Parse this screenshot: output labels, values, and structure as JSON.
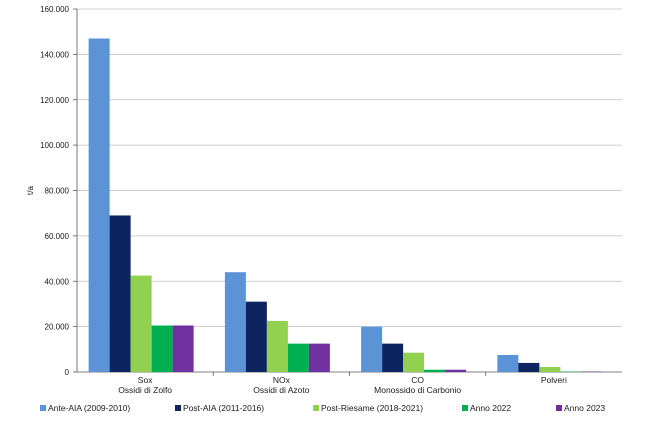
{
  "chart_data": {
    "type": "bar",
    "title": "",
    "xlabel": "",
    "ylabel": "t/a",
    "ylim": [
      0,
      160000
    ],
    "yticks": [
      {
        "value": 0,
        "label": "0"
      },
      {
        "value": 20000,
        "label": "20.000"
      },
      {
        "value": 40000,
        "label": "40.000"
      },
      {
        "value": 60000,
        "label": "60.000"
      },
      {
        "value": 80000,
        "label": "80.000"
      },
      {
        "value": 100000,
        "label": "100.000"
      },
      {
        "value": 120000,
        "label": "120.000"
      },
      {
        "value": 140000,
        "label": "140.000"
      },
      {
        "value": 160000,
        "label": "160.000"
      }
    ],
    "grid": true,
    "legend_position": "bottom",
    "categories": [
      {
        "line1": "Sox",
        "line2": "Ossidi di Zolfo"
      },
      {
        "line1": "NOx",
        "line2": "Ossidi di Azoto"
      },
      {
        "line1": "CO",
        "line2": "Monossido di Carbonio"
      },
      {
        "line1": "Polveri",
        "line2": ""
      }
    ],
    "series": [
      {
        "name": "Ante-AIA (2009-2010)",
        "color": "#5B93D6",
        "values": [
          147000,
          44000,
          20000,
          7500
        ]
      },
      {
        "name": "Post-AIA (2011-2016)",
        "color": "#0D2461",
        "values": [
          69000,
          31000,
          12500,
          4000
        ]
      },
      {
        "name": "Post-Riesame (2018-2021)",
        "color": "#92D050",
        "values": [
          42500,
          22500,
          8500,
          2200
        ]
      },
      {
        "name": "Anno 2022",
        "color": "#00B050",
        "values": [
          20500,
          12500,
          1000,
          200
        ]
      },
      {
        "name": "Anno 2023",
        "color": "#7030A0",
        "values": [
          20500,
          12500,
          1000,
          200
        ]
      }
    ]
  }
}
